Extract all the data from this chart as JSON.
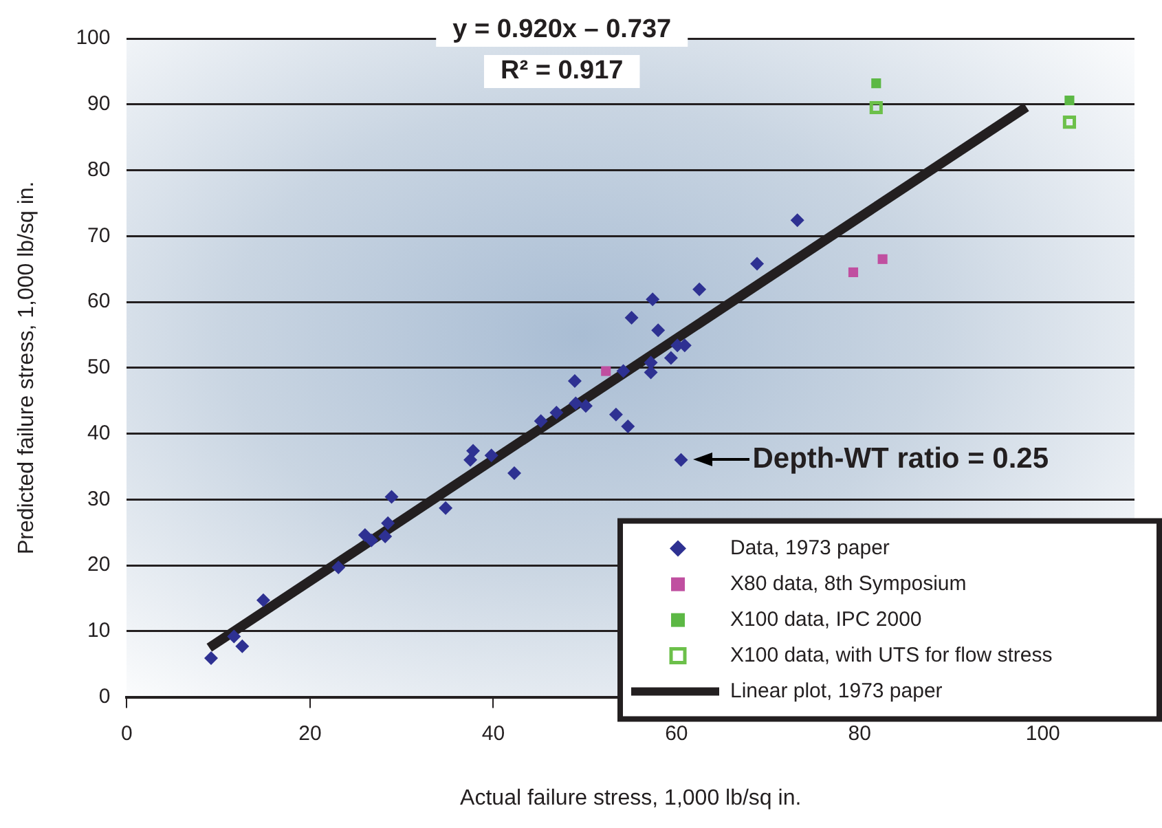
{
  "chart_data": {
    "type": "scatter",
    "xlabel": "Actual failure stress, 1,000 lb/sq in.",
    "ylabel": "Predicted failure stress, 1,000 lb/sq in.",
    "xlim": [
      0,
      110
    ],
    "xticks": [
      0,
      20,
      40,
      60,
      80,
      100
    ],
    "ylim": [
      0,
      100
    ],
    "yticks": [
      0,
      10,
      20,
      30,
      40,
      50,
      60,
      70,
      80,
      90,
      100
    ],
    "grid": "y",
    "legend": "bottom right",
    "annotations": [
      "y = 0.920x – 0.737",
      "R² = 0.917",
      {
        "text": "Depth-WT ratio = 0.25",
        "x": 60.5,
        "y": 36.0
      }
    ],
    "series": [
      {
        "name": "Data, 1973 paper",
        "marker": "diamond",
        "color": "#2e3192",
        "x": [
          9.2,
          11.7,
          12.6,
          14.9,
          23.1,
          26.0,
          26.7,
          28.2,
          28.5,
          28.9,
          34.8,
          37.5,
          37.8,
          39.8,
          42.3,
          45.2,
          46.9,
          48.9,
          49.0,
          50.1,
          53.4,
          54.7,
          54.2,
          55.1,
          57.4,
          58.0,
          57.2,
          57.2,
          59.4,
          60.1,
          60.9,
          62.5,
          68.8,
          73.2,
          60.5
        ],
        "values": [
          5.9,
          9.2,
          7.7,
          14.7,
          19.7,
          24.6,
          23.8,
          24.4,
          26.4,
          30.4,
          28.7,
          36.0,
          37.4,
          36.7,
          34.0,
          41.9,
          43.2,
          48.0,
          44.6,
          44.2,
          42.9,
          41.1,
          49.5,
          57.6,
          60.4,
          55.7,
          50.8,
          49.3,
          51.5,
          53.4,
          53.4,
          61.9,
          65.8,
          72.4,
          36.0
        ]
      },
      {
        "name": "X80 data, 8th Symposium",
        "marker": "square",
        "color": "#c04fa0",
        "x": [
          52.3,
          79.3,
          82.5
        ],
        "values": [
          49.5,
          64.5,
          66.5
        ]
      },
      {
        "name": "X100 data, IPC 2000",
        "marker": "square",
        "color": "#5cb845",
        "x": [
          81.8,
          102.9
        ],
        "values": [
          93.2,
          90.6
        ]
      },
      {
        "name": "X100 data, with UTS for flow stress",
        "marker": "square-open",
        "color": "#6cc04a",
        "x": [
          81.8,
          102.9
        ],
        "values": [
          89.5,
          87.3
        ]
      },
      {
        "name": "Linear plot, 1973 paper",
        "type": "line",
        "marker": "none",
        "line_style": "solid",
        "color": "#231f20",
        "x": [
          9.0,
          98.2
        ],
        "values": [
          7.5,
          89.6
        ]
      }
    ]
  }
}
